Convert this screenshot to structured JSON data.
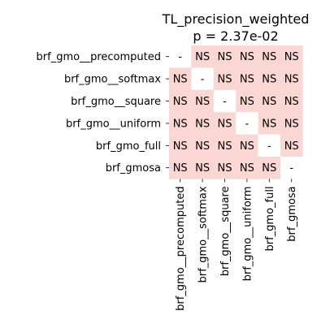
{
  "chart_data": {
    "type": "heatmap",
    "title": "TL_precision_weighted",
    "subtitle": "p = 2.37e-02",
    "row_labels": [
      "brf_gmo__precomputed",
      "brf_gmo__softmax",
      "brf_gmo__square",
      "brf_gmo__uniform",
      "brf_gmo_full",
      "brf_gmosa"
    ],
    "col_labels": [
      "brf_gmo__precomputed",
      "brf_gmo__softmax",
      "brf_gmo__square",
      "brf_gmo__uniform",
      "brf_gmo_full",
      "brf_gmosa"
    ],
    "cells": [
      [
        "-",
        "NS",
        "NS",
        "NS",
        "NS",
        "NS"
      ],
      [
        "NS",
        "-",
        "NS",
        "NS",
        "NS",
        "NS"
      ],
      [
        "NS",
        "NS",
        "-",
        "NS",
        "NS",
        "NS"
      ],
      [
        "NS",
        "NS",
        "NS",
        "-",
        "NS",
        "NS"
      ],
      [
        "NS",
        "NS",
        "NS",
        "NS",
        "-",
        "NS"
      ],
      [
        "NS",
        "NS",
        "NS",
        "NS",
        "NS",
        "-"
      ]
    ],
    "colors": {
      "NS": "#fbd7d4",
      "-": "#ffffff"
    }
  }
}
